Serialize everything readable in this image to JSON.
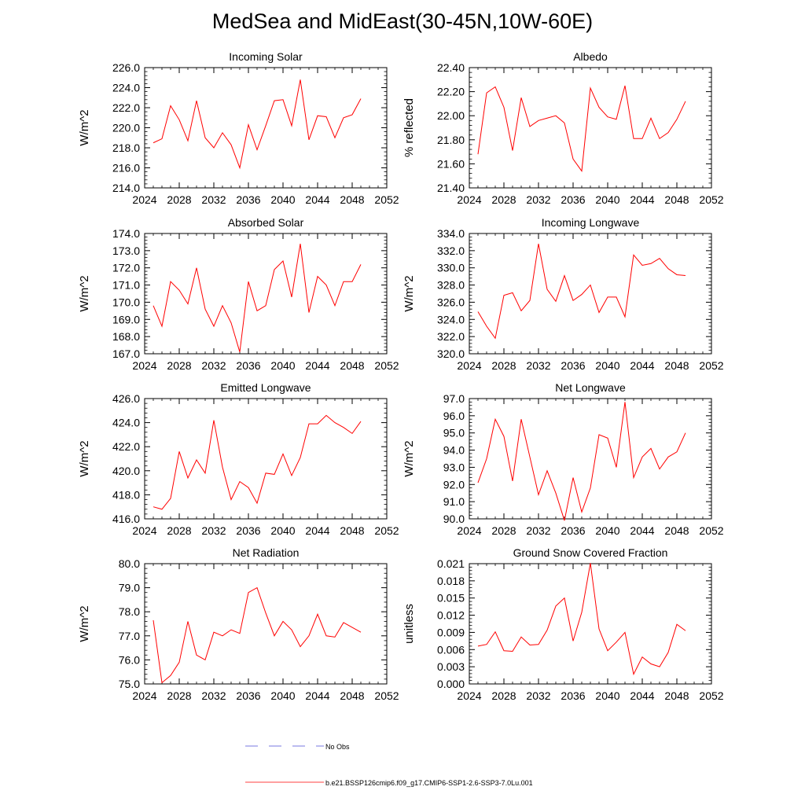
{
  "page": {
    "title": "MedSea and MidEast(30-45N,10W-60E)"
  },
  "legend": {
    "entries": [
      {
        "label": "No Obs",
        "style": "dashed",
        "color": "#4b4bd6"
      },
      {
        "label": "b.e21.BSSP126cmip6.f09_g17.CMIP6-SSP1-2.6-SSP3-7.0Lu.001",
        "style": "solid",
        "color": "#ff0000"
      }
    ]
  },
  "chart_data": [
    {
      "type": "line",
      "title": "Incoming Solar",
      "ylabel": "W/m^2",
      "xlabel": "",
      "xlim": [
        2024,
        2052
      ],
      "ylim": [
        214,
        226
      ],
      "xticks": [
        2024,
        2028,
        2032,
        2036,
        2040,
        2044,
        2048,
        2052
      ],
      "xticklabels": [
        "2024",
        "2028",
        "2032",
        "2036",
        "2040",
        "2044",
        "2048",
        "2052"
      ],
      "yticks": [
        214,
        216,
        218,
        220,
        222,
        224,
        226
      ],
      "yticklabels": [
        "214.0",
        "216.0",
        "218.0",
        "220.0",
        "222.0",
        "224.0",
        "226.0"
      ],
      "color": "#ff0000",
      "x": [
        2025,
        2026,
        2027,
        2028,
        2029,
        2030,
        2031,
        2032,
        2033,
        2034,
        2035,
        2036,
        2037,
        2038,
        2039,
        2040,
        2041,
        2042,
        2043,
        2044,
        2045,
        2046,
        2047,
        2048,
        2049
      ],
      "y": [
        218.5,
        218.9,
        222.2,
        220.8,
        218.7,
        222.7,
        219.0,
        218.0,
        219.5,
        218.3,
        216.0,
        220.3,
        217.8,
        220.2,
        222.7,
        222.8,
        220.2,
        224.8,
        218.8,
        221.2,
        221.1,
        219.0,
        221.0,
        221.3,
        222.9
      ]
    },
    {
      "type": "line",
      "title": "Albedo",
      "ylabel": "% reflected",
      "xlabel": "",
      "xlim": [
        2024,
        2052
      ],
      "ylim": [
        21.4,
        22.4
      ],
      "xticks": [
        2024,
        2028,
        2032,
        2036,
        2040,
        2044,
        2048,
        2052
      ],
      "xticklabels": [
        "2024",
        "2028",
        "2032",
        "2036",
        "2040",
        "2044",
        "2048",
        "2052"
      ],
      "yticks": [
        21.4,
        21.6,
        21.8,
        22.0,
        22.2,
        22.4
      ],
      "yticklabels": [
        "21.40",
        "21.60",
        "21.80",
        "22.00",
        "22.20",
        "22.40"
      ],
      "color": "#ff0000",
      "x": [
        2025,
        2026,
        2027,
        2028,
        2029,
        2030,
        2031,
        2032,
        2033,
        2034,
        2035,
        2036,
        2037,
        2038,
        2039,
        2040,
        2041,
        2042,
        2043,
        2044,
        2045,
        2046,
        2047,
        2048,
        2049
      ],
      "y": [
        21.68,
        22.19,
        22.24,
        22.07,
        21.71,
        22.15,
        21.91,
        21.96,
        21.98,
        22.0,
        21.94,
        21.64,
        21.54,
        22.23,
        22.07,
        21.99,
        21.97,
        22.25,
        21.81,
        21.81,
        21.98,
        21.81,
        21.86,
        21.97,
        22.12
      ]
    },
    {
      "type": "line",
      "title": "Absorbed Solar",
      "ylabel": "W/m^2",
      "xlabel": "",
      "xlim": [
        2024,
        2052
      ],
      "ylim": [
        167,
        174
      ],
      "xticks": [
        2024,
        2028,
        2032,
        2036,
        2040,
        2044,
        2048,
        2052
      ],
      "xticklabels": [
        "2024",
        "2028",
        "2032",
        "2036",
        "2040",
        "2044",
        "2048",
        "2052"
      ],
      "yticks": [
        167,
        168,
        169,
        170,
        171,
        172,
        173,
        174
      ],
      "yticklabels": [
        "167.0",
        "168.0",
        "169.0",
        "170.0",
        "171.0",
        "172.0",
        "173.0",
        "174.0"
      ],
      "color": "#ff0000",
      "x": [
        2025,
        2026,
        2027,
        2028,
        2029,
        2030,
        2031,
        2032,
        2033,
        2034,
        2035,
        2036,
        2037,
        2038,
        2039,
        2040,
        2041,
        2042,
        2043,
        2044,
        2045,
        2046,
        2047,
        2048,
        2049
      ],
      "y": [
        169.8,
        168.6,
        171.2,
        170.7,
        169.9,
        172.0,
        169.6,
        168.6,
        169.8,
        168.8,
        167.1,
        171.2,
        169.5,
        169.8,
        171.9,
        172.4,
        170.3,
        173.4,
        169.4,
        171.5,
        171.0,
        169.8,
        171.2,
        171.2,
        172.2
      ]
    },
    {
      "type": "line",
      "title": "Incoming Longwave",
      "ylabel": "W/m^2",
      "xlabel": "",
      "xlim": [
        2024,
        2052
      ],
      "ylim": [
        320,
        334
      ],
      "xticks": [
        2024,
        2028,
        2032,
        2036,
        2040,
        2044,
        2048,
        2052
      ],
      "xticklabels": [
        "2024",
        "2028",
        "2032",
        "2036",
        "2040",
        "2044",
        "2048",
        "2052"
      ],
      "yticks": [
        320,
        322,
        324,
        326,
        328,
        330,
        332,
        334
      ],
      "yticklabels": [
        "320.0",
        "322.0",
        "324.0",
        "326.0",
        "328.0",
        "330.0",
        "332.0",
        "334.0"
      ],
      "color": "#ff0000",
      "x": [
        2025,
        2026,
        2027,
        2028,
        2029,
        2030,
        2031,
        2032,
        2033,
        2034,
        2035,
        2036,
        2037,
        2038,
        2039,
        2040,
        2041,
        2042,
        2043,
        2044,
        2045,
        2046,
        2047,
        2048,
        2049
      ],
      "y": [
        324.9,
        323.2,
        321.8,
        326.8,
        327.1,
        325.0,
        326.2,
        332.8,
        327.5,
        326.1,
        329.1,
        326.2,
        326.9,
        328.0,
        324.8,
        326.6,
        326.6,
        324.3,
        331.5,
        330.3,
        330.5,
        331.1,
        329.9,
        329.2,
        329.1
      ]
    },
    {
      "type": "line",
      "title": "Emitted Longwave",
      "ylabel": "W/m^2",
      "xlabel": "",
      "xlim": [
        2024,
        2052
      ],
      "ylim": [
        416,
        426
      ],
      "xticks": [
        2024,
        2028,
        2032,
        2036,
        2040,
        2044,
        2048,
        2052
      ],
      "xticklabels": [
        "2024",
        "2028",
        "2032",
        "2036",
        "2040",
        "2044",
        "2048",
        "2052"
      ],
      "yticks": [
        416,
        418,
        420,
        422,
        424,
        426
      ],
      "yticklabels": [
        "416.0",
        "418.0",
        "420.0",
        "422.0",
        "424.0",
        "426.0"
      ],
      "color": "#ff0000",
      "x": [
        2025,
        2026,
        2027,
        2028,
        2029,
        2030,
        2031,
        2032,
        2033,
        2034,
        2035,
        2036,
        2037,
        2038,
        2039,
        2040,
        2041,
        2042,
        2043,
        2044,
        2045,
        2046,
        2047,
        2048,
        2049
      ],
      "y": [
        417.0,
        416.8,
        417.7,
        421.6,
        419.4,
        420.9,
        419.8,
        424.2,
        420.3,
        417.6,
        419.1,
        418.6,
        417.3,
        419.8,
        419.7,
        421.4,
        419.6,
        421.1,
        423.9,
        423.9,
        424.6,
        424.0,
        423.6,
        423.1,
        424.1
      ]
    },
    {
      "type": "line",
      "title": "Net Longwave",
      "ylabel": "W/m^2",
      "xlabel": "",
      "xlim": [
        2024,
        2052
      ],
      "ylim": [
        90,
        97
      ],
      "xticks": [
        2024,
        2028,
        2032,
        2036,
        2040,
        2044,
        2048,
        2052
      ],
      "xticklabels": [
        "2024",
        "2028",
        "2032",
        "2036",
        "2040",
        "2044",
        "2048",
        "2052"
      ],
      "yticks": [
        90,
        91,
        92,
        93,
        94,
        95,
        96,
        97
      ],
      "yticklabels": [
        "90.0",
        "91.0",
        "92.0",
        "93.0",
        "94.0",
        "95.0",
        "96.0",
        "97.0"
      ],
      "color": "#ff0000",
      "x": [
        2025,
        2026,
        2027,
        2028,
        2029,
        2030,
        2031,
        2032,
        2033,
        2034,
        2035,
        2036,
        2037,
        2038,
        2039,
        2040,
        2041,
        2042,
        2043,
        2044,
        2045,
        2046,
        2047,
        2048,
        2049
      ],
      "y": [
        92.1,
        93.5,
        95.8,
        94.8,
        92.2,
        95.8,
        93.6,
        91.4,
        92.8,
        91.5,
        89.9,
        92.4,
        90.4,
        91.8,
        94.9,
        94.7,
        93.0,
        96.8,
        92.4,
        93.6,
        94.1,
        92.9,
        93.6,
        93.9,
        95.0
      ]
    },
    {
      "type": "line",
      "title": "Net Radiation",
      "ylabel": "W/m^2",
      "xlabel": "",
      "xlim": [
        2024,
        2052
      ],
      "ylim": [
        75,
        80
      ],
      "xticks": [
        2024,
        2028,
        2032,
        2036,
        2040,
        2044,
        2048,
        2052
      ],
      "xticklabels": [
        "2024",
        "2028",
        "2032",
        "2036",
        "2040",
        "2044",
        "2048",
        "2052"
      ],
      "yticks": [
        75,
        76,
        77,
        78,
        79,
        80
      ],
      "yticklabels": [
        "75.0",
        "76.0",
        "77.0",
        "78.0",
        "79.0",
        "80.0"
      ],
      "color": "#ff0000",
      "x": [
        2025,
        2026,
        2027,
        2028,
        2029,
        2030,
        2031,
        2032,
        2033,
        2034,
        2035,
        2036,
        2037,
        2038,
        2039,
        2040,
        2041,
        2042,
        2043,
        2044,
        2045,
        2046,
        2047,
        2048,
        2049
      ],
      "y": [
        77.65,
        75.05,
        75.35,
        75.9,
        77.6,
        76.2,
        76.0,
        77.15,
        77.0,
        77.25,
        77.1,
        78.8,
        79.0,
        77.95,
        77.0,
        77.6,
        77.25,
        76.55,
        77.0,
        77.9,
        77.0,
        76.95,
        77.55,
        77.35,
        77.15
      ]
    },
    {
      "type": "line",
      "title": "Ground Snow Covered Fraction",
      "ylabel": "unitless",
      "xlabel": "",
      "xlim": [
        2024,
        2052
      ],
      "ylim": [
        0,
        0.021
      ],
      "xticks": [
        2024,
        2028,
        2032,
        2036,
        2040,
        2044,
        2048,
        2052
      ],
      "xticklabels": [
        "2024",
        "2028",
        "2032",
        "2036",
        "2040",
        "2044",
        "2048",
        "2052"
      ],
      "yticks": [
        0,
        0.003,
        0.006,
        0.009,
        0.012,
        0.015,
        0.018,
        0.021
      ],
      "yticklabels": [
        "0.000",
        "0.003",
        "0.006",
        "0.009",
        "0.012",
        "0.015",
        "0.018",
        "0.021"
      ],
      "color": "#ff0000",
      "x": [
        2025,
        2026,
        2027,
        2028,
        2029,
        2030,
        2031,
        2032,
        2033,
        2034,
        2035,
        2036,
        2037,
        2038,
        2039,
        2040,
        2041,
        2042,
        2043,
        2044,
        2045,
        2046,
        2047,
        2048,
        2049
      ],
      "y": [
        0.0066,
        0.0069,
        0.0091,
        0.0058,
        0.0057,
        0.0082,
        0.0068,
        0.0069,
        0.0094,
        0.0136,
        0.015,
        0.0075,
        0.0125,
        0.0211,
        0.0096,
        0.0058,
        0.0073,
        0.009,
        0.0017,
        0.0047,
        0.0035,
        0.003,
        0.0055,
        0.0104,
        0.0093
      ]
    }
  ]
}
